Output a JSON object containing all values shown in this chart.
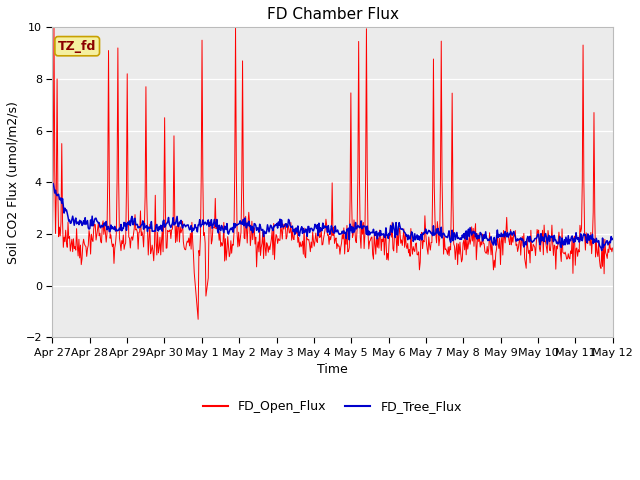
{
  "title": "FD Chamber Flux",
  "xlabel": "Time",
  "ylabel": "Soil CO2 Flux (umol/m2/s)",
  "ylim": [
    -2,
    10
  ],
  "yticks": [
    -2,
    0,
    2,
    4,
    6,
    8,
    10
  ],
  "date_labels": [
    "Apr 27",
    "Apr 28",
    "Apr 29",
    "Apr 30",
    "May 1",
    "May 2",
    "May 3",
    "May 4",
    "May 5",
    "May 6",
    "May 7",
    "May 8",
    "May 9",
    "May 10",
    "May 11",
    "May 12"
  ],
  "annotation_text": "TZ_fd",
  "annotation_bg": "#f5f0a0",
  "annotation_border": "#c8a000",
  "red_color": "#ff0000",
  "blue_color": "#0000cc",
  "bg_color": "#ebebeb",
  "legend_red_label": "FD_Open_Flux",
  "legend_blue_label": "FD_Tree_Flux",
  "title_fontsize": 11,
  "axis_label_fontsize": 9,
  "tick_fontsize": 8,
  "figwidth": 6.4,
  "figheight": 4.8,
  "dpi": 100
}
